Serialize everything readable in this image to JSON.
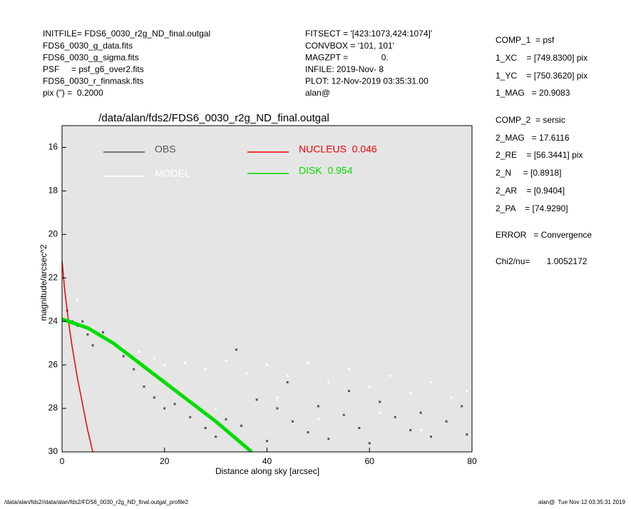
{
  "header": {
    "left": [
      "INITFILE= FDS6_0030_r2g_ND_final.outgal",
      "FDS6_0030_g_data.fits",
      "FDS6_0030_g_sigma.fits",
      "PSF     = psf_g6_over2.fits",
      "FDS6_0030_r_finmask.fits",
      "pix (\") =  0.2000"
    ],
    "middle": [
      "FITSECT = '[423:1073,424:1074]'",
      "CONVBOX = '101, 101'",
      "MAGZPT =              0.",
      "INFILE: 2019-Nov- 8",
      "PLOT: 12-Nov-2019 03:35:31.00",
      "alan@"
    ],
    "right": [
      "COMP_1  = psf",
      "1_XC    = [749.8300] pix",
      "1_YC    = [750.3620] pix",
      "1_MAG   = 20.9083",
      "COMP_2  = sersic",
      "2_MAG   = 17.6116",
      "2_RE    = [56.3441] pix",
      "2_N     = [0.8918]",
      "2_AR    = [0.9404]",
      "2_PA    = [74.9290]",
      "ERROR   = Convergence",
      "Chi2/nu=       1.0052172"
    ]
  },
  "footer": {
    "left": "/data/alan/fds2//data/alan/fds2/FDS6_0030_r2g_ND_final.outgal_profile2",
    "right": "alan@  Tue Nov 12 03:35:31 2019"
  },
  "chart_data": {
    "type": "scatter",
    "title": "/data/alan/fds2/FDS6_0030_r2g_ND_final.outgal",
    "x_label": "Distance along sky [arcsec]",
    "y_label": "magnitude/arcsec^2",
    "xlim": [
      0,
      80
    ],
    "ylim": [
      30,
      15
    ],
    "xticks": [
      0,
      20,
      40,
      60,
      80
    ],
    "yticks": [
      16,
      18,
      20,
      22,
      24,
      26,
      28,
      30
    ],
    "background": "#e5e5e5",
    "series": [
      {
        "name": "OBS",
        "color": "#555555",
        "style": "points",
        "x": [
          1,
          2,
          3,
          4,
          5,
          6,
          8,
          10,
          12,
          14,
          16,
          18,
          20,
          22,
          25,
          28,
          30,
          32,
          35,
          38,
          40,
          42,
          45,
          48,
          50,
          52,
          55,
          58,
          60,
          62,
          65,
          68,
          70,
          72,
          75,
          78,
          79,
          34,
          44,
          56
        ],
        "values": [
          23.5,
          24.0,
          24.2,
          24.0,
          24.6,
          25.1,
          24.5,
          25.0,
          25.6,
          26.2,
          27.0,
          27.5,
          28.0,
          27.8,
          28.4,
          28.9,
          29.3,
          28.5,
          28.8,
          27.6,
          29.5,
          28.0,
          28.6,
          29.1,
          27.9,
          29.4,
          28.3,
          28.9,
          29.6,
          27.7,
          28.4,
          29.0,
          28.2,
          29.3,
          28.6,
          27.9,
          29.2,
          25.3,
          26.8,
          27.2
        ]
      },
      {
        "name": "MODEL",
        "color": "#ffffff",
        "style": "points",
        "x": [
          3,
          6,
          9,
          12,
          15,
          18,
          20,
          24,
          28,
          32,
          36,
          40,
          44,
          48,
          52,
          56,
          60,
          64,
          68,
          72,
          76,
          79,
          30,
          50,
          70,
          22,
          42,
          62
        ],
        "values": [
          23.0,
          24.3,
          24.8,
          25.2,
          25.4,
          25.7,
          26.0,
          25.9,
          26.2,
          25.8,
          26.4,
          26.0,
          26.5,
          25.9,
          26.8,
          26.2,
          27.0,
          26.5,
          27.3,
          26.8,
          27.5,
          27.2,
          28.0,
          28.5,
          29.0,
          27.0,
          27.5,
          28.2
        ]
      },
      {
        "name": "NUCLEUS  0.046",
        "color": "#ee0000",
        "style": "line",
        "x": [
          0,
          0.5,
          1,
          1.5,
          2,
          3,
          4,
          5,
          6
        ],
        "values": [
          21.2,
          22.5,
          23.5,
          24.4,
          25.2,
          26.6,
          27.8,
          29.0,
          30.0
        ]
      },
      {
        "name": "DISK  0.954",
        "color": "#00dd00",
        "style": "line",
        "x": [
          0,
          5,
          10,
          15,
          20,
          25,
          30,
          35,
          37
        ],
        "values": [
          23.9,
          24.3,
          25.0,
          25.9,
          26.8,
          27.7,
          28.6,
          29.6,
          30.0
        ]
      }
    ]
  }
}
